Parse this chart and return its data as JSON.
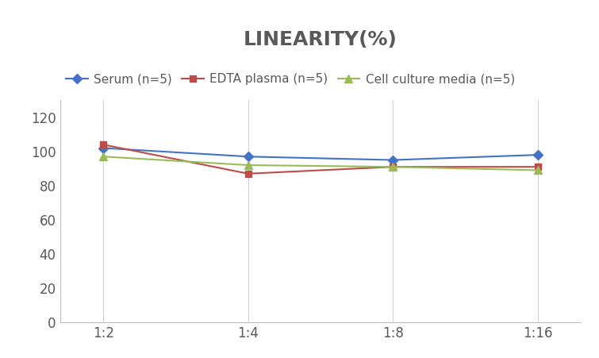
{
  "title": "LINEARITY(%)",
  "title_color": "#595959",
  "x_labels": [
    "1:2",
    "1:4",
    "1:8",
    "1:16"
  ],
  "x_positions": [
    0,
    1,
    2,
    3
  ],
  "series": [
    {
      "label": "Serum (n=5)",
      "values": [
        102,
        97,
        95,
        98
      ],
      "color": "#4472C4",
      "marker": "D",
      "markersize": 6
    },
    {
      "label": "EDTA plasma (n=5)",
      "values": [
        104,
        87,
        91,
        91
      ],
      "color": "#BE4B48",
      "marker": "s",
      "markersize": 6
    },
    {
      "label": "Cell culture media (n=5)",
      "values": [
        97,
        92,
        91,
        89
      ],
      "color": "#9BBB59",
      "marker": "^",
      "markersize": 7
    }
  ],
  "ylim": [
    0,
    130
  ],
  "yticks": [
    0,
    20,
    40,
    60,
    80,
    100,
    120
  ],
  "title_fontsize": 18,
  "legend_fontsize": 11,
  "tick_fontsize": 12,
  "background_color": "#ffffff",
  "grid_color": "#d3d3d3",
  "spine_color": "#c0c0c0"
}
